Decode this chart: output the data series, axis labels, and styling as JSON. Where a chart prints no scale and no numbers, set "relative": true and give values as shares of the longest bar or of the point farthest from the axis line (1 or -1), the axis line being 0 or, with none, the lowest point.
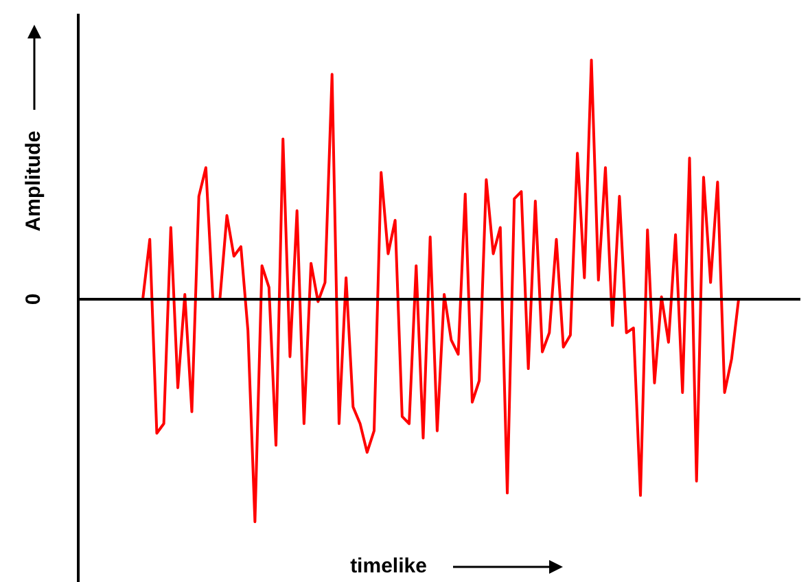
{
  "chart_data": {
    "type": "line",
    "relative": true,
    "xlabel": "timelike",
    "ylabel": "Amplitude",
    "annotations": [
      "0"
    ],
    "legend": false,
    "marker": "none",
    "line_style": "solid",
    "categories": [
      null,
      null,
      null,
      null,
      null,
      null,
      null,
      null,
      null,
      null,
      null,
      null,
      null,
      null,
      null,
      null,
      null,
      null,
      null,
      null,
      null,
      null,
      null,
      null,
      null,
      null,
      null,
      null,
      null,
      null,
      null,
      null,
      null,
      null,
      null,
      null,
      null,
      null,
      null,
      null,
      null,
      null,
      null,
      null,
      null,
      null,
      null,
      null,
      null,
      null,
      null,
      null,
      null,
      null,
      null,
      null,
      null,
      null,
      null,
      null,
      null,
      null,
      null,
      null,
      null,
      null,
      null,
      null,
      null,
      null,
      null,
      null,
      null,
      null,
      null,
      null,
      null,
      null,
      null,
      null,
      null,
      null,
      null,
      null,
      null,
      null
    ],
    "series": [
      {
        "color": "#ff0000",
        "values": [
          0,
          0.25,
          -0.56,
          -0.52,
          0.3,
          -0.37,
          0.02,
          -0.47,
          0.43,
          0.55,
          0,
          0,
          0.35,
          0.18,
          0.22,
          -0.13,
          -0.93,
          0.14,
          0.05,
          -0.61,
          0.67,
          -0.24,
          0.37,
          -0.52,
          0.15,
          -0.01,
          0.07,
          0.94,
          -0.52,
          0.09,
          -0.45,
          -0.52,
          -0.64,
          -0.55,
          0.53,
          0.19,
          0.33,
          -0.49,
          -0.52,
          0.14,
          -0.58,
          0.26,
          -0.55,
          0.02,
          -0.17,
          -0.23,
          0.44,
          -0.43,
          -0.34,
          0.5,
          0.19,
          0.3,
          -0.81,
          0.42,
          0.45,
          -0.29,
          0.41,
          -0.22,
          -0.14,
          0.25,
          -0.2,
          -0.15,
          0.61,
          0.09,
          1,
          0.08,
          0.55,
          -0.11,
          0.43,
          -0.14,
          -0.12,
          -0.82,
          0.29,
          -0.35,
          0.01,
          -0.18,
          0.27,
          -0.39,
          0.59,
          -0.76,
          0.51,
          0.07,
          0.49,
          -0.39,
          -0.25,
          0
        ]
      }
    ]
  }
}
